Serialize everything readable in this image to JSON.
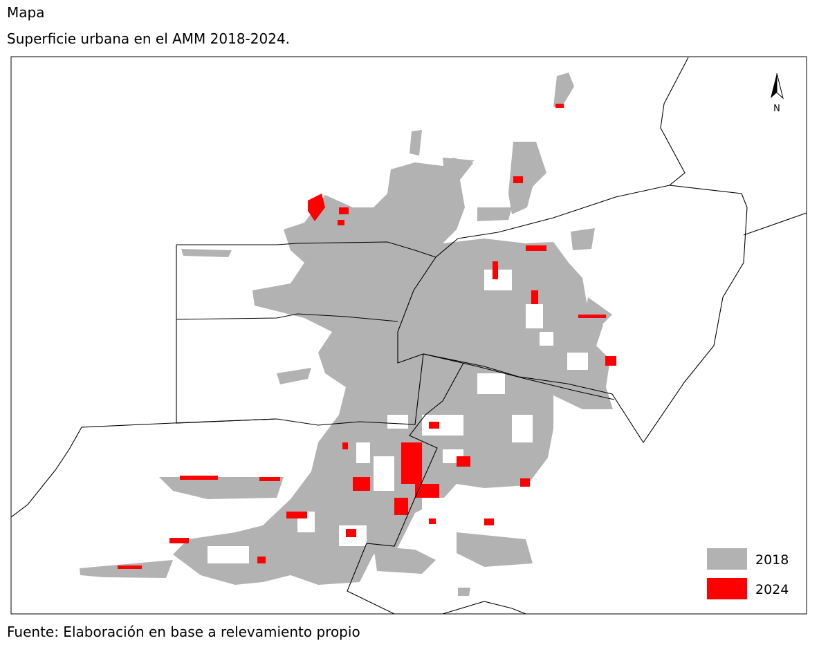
{
  "header": {
    "title": "Mapa",
    "subtitle": "Superficie urbana en el AMM 2018-2024."
  },
  "map": {
    "north_label": "N",
    "legend": [
      {
        "label": "2018",
        "color": "#b2b2b2"
      },
      {
        "label": "2024",
        "color": "#ff0000"
      }
    ]
  },
  "footer": {
    "source": "Fuente: Elaboración en base a relevamiento propio"
  }
}
